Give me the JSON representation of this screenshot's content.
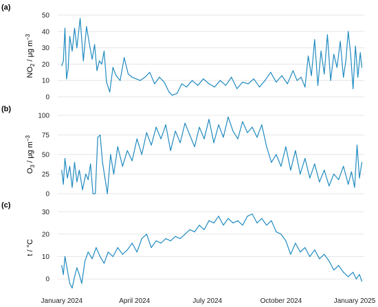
{
  "chart_data": [
    {
      "type": "line",
      "panel_label": "(a)",
      "ylabel_main": "NO",
      "ylabel_sub": "2",
      "ylabel_unit": " / μg m",
      "ylabel_sup": "−3",
      "ylim": [
        0,
        50
      ],
      "yticks": [
        0,
        10,
        20,
        30,
        40,
        50
      ],
      "grid": true,
      "color": "#1f8ac0",
      "series": [
        {
          "x": [
            "2024-01-01",
            "2024-01-03",
            "2024-01-05",
            "2024-01-07",
            "2024-01-09",
            "2024-01-11",
            "2024-01-14",
            "2024-01-17",
            "2024-01-20",
            "2024-01-24",
            "2024-01-28",
            "2024-02-01",
            "2024-02-05",
            "2024-02-08",
            "2024-02-11",
            "2024-02-14",
            "2024-02-17",
            "2024-02-20",
            "2024-02-23",
            "2024-02-26",
            "2024-03-01",
            "2024-03-05",
            "2024-03-09",
            "2024-03-14",
            "2024-03-19",
            "2024-03-24",
            "2024-03-29",
            "2024-04-03",
            "2024-04-08",
            "2024-04-14",
            "2024-04-20",
            "2024-04-26",
            "2024-05-02",
            "2024-05-08",
            "2024-05-14",
            "2024-05-18",
            "2024-05-24",
            "2024-05-30",
            "2024-06-05",
            "2024-06-12",
            "2024-06-19",
            "2024-06-26",
            "2024-07-03",
            "2024-07-10",
            "2024-07-17",
            "2024-07-24",
            "2024-07-31",
            "2024-08-07",
            "2024-08-14",
            "2024-08-21",
            "2024-08-28",
            "2024-09-04",
            "2024-09-11",
            "2024-09-18",
            "2024-09-25",
            "2024-10-02",
            "2024-10-09",
            "2024-10-16",
            "2024-10-21",
            "2024-10-26",
            "2024-10-31",
            "2024-11-04",
            "2024-11-08",
            "2024-11-12",
            "2024-11-16",
            "2024-11-20",
            "2024-11-24",
            "2024-11-28",
            "2024-12-02",
            "2024-12-06",
            "2024-12-10",
            "2024-12-14",
            "2024-12-18",
            "2024-12-21",
            "2024-12-24",
            "2024-12-27",
            "2024-12-30",
            "2025-01-02",
            "2025-01-05",
            "2025-01-08",
            "2025-01-10"
          ],
          "y": [
            19,
            22,
            42,
            11,
            17,
            37,
            28,
            42,
            30,
            48,
            22,
            43,
            31,
            23,
            32,
            16,
            22,
            20,
            28,
            9,
            3,
            18,
            13,
            10,
            24,
            14,
            12,
            11,
            10,
            12,
            15,
            8,
            12,
            9,
            3,
            1,
            2,
            8,
            6,
            10,
            7,
            11,
            8,
            6,
            10,
            7,
            12,
            5,
            9,
            8,
            11,
            6,
            10,
            15,
            9,
            13,
            8,
            16,
            10,
            12,
            6,
            25,
            13,
            35,
            7,
            28,
            14,
            38,
            10,
            26,
            18,
            34,
            12,
            22,
            40,
            26,
            5,
            31,
            12,
            27,
            18
          ]
        }
      ]
    },
    {
      "type": "line",
      "panel_label": "(b)",
      "ylabel_main": "O",
      "ylabel_sub": "3",
      "ylabel_unit": " / μg m",
      "ylabel_sup": "−3",
      "ylim": [
        0,
        100
      ],
      "yticks": [
        0,
        25,
        50,
        75,
        100
      ],
      "grid": true,
      "color": "#1f8ac0",
      "series": [
        {
          "x": [
            "2024-01-01",
            "2024-01-03",
            "2024-01-05",
            "2024-01-08",
            "2024-01-11",
            "2024-01-14",
            "2024-01-17",
            "2024-01-20",
            "2024-01-23",
            "2024-01-27",
            "2024-01-31",
            "2024-02-03",
            "2024-02-06",
            "2024-02-09",
            "2024-02-12",
            "2024-02-15",
            "2024-02-18",
            "2024-02-21",
            "2024-02-24",
            "2024-02-27",
            "2024-03-02",
            "2024-03-06",
            "2024-03-11",
            "2024-03-17",
            "2024-03-23",
            "2024-03-29",
            "2024-04-04",
            "2024-04-10",
            "2024-04-16",
            "2024-04-22",
            "2024-04-28",
            "2024-05-04",
            "2024-05-10",
            "2024-05-16",
            "2024-05-22",
            "2024-05-28",
            "2024-06-03",
            "2024-06-09",
            "2024-06-15",
            "2024-06-21",
            "2024-06-27",
            "2024-07-03",
            "2024-07-09",
            "2024-07-15",
            "2024-07-21",
            "2024-07-27",
            "2024-08-02",
            "2024-08-08",
            "2024-08-14",
            "2024-08-20",
            "2024-08-26",
            "2024-09-01",
            "2024-09-07",
            "2024-09-13",
            "2024-09-19",
            "2024-09-25",
            "2024-10-01",
            "2024-10-07",
            "2024-10-13",
            "2024-10-19",
            "2024-10-25",
            "2024-10-31",
            "2024-11-06",
            "2024-11-12",
            "2024-11-18",
            "2024-11-24",
            "2024-11-30",
            "2024-12-06",
            "2024-12-12",
            "2024-12-18",
            "2024-12-24",
            "2024-12-28",
            "2025-01-01",
            "2025-01-04",
            "2025-01-07",
            "2025-01-10"
          ],
          "y": [
            30,
            12,
            45,
            20,
            35,
            8,
            40,
            15,
            30,
            5,
            25,
            18,
            38,
            0,
            0,
            72,
            75,
            40,
            20,
            0,
            50,
            25,
            60,
            35,
            55,
            42,
            70,
            50,
            78,
            62,
            85,
            70,
            88,
            55,
            80,
            65,
            90,
            75,
            60,
            85,
            70,
            95,
            65,
            88,
            72,
            98,
            80,
            70,
            92,
            78,
            85,
            72,
            88,
            60,
            40,
            50,
            35,
            60,
            30,
            55,
            25,
            45,
            20,
            38,
            15,
            30,
            10,
            25,
            18,
            35,
            12,
            28,
            8,
            62,
            20,
            40
          ]
        }
      ]
    },
    {
      "type": "line",
      "panel_label": "(c)",
      "ylabel_main": "t / °C",
      "ylim": [
        -3,
        31
      ],
      "yticks": [
        0,
        10,
        20,
        30
      ],
      "grid": true,
      "color": "#1f8ac0",
      "xticks": [
        "January 2024",
        "April 2024",
        "July 2024",
        "October 2024",
        "January 2025"
      ],
      "xtick_dates": [
        "2024-01-01",
        "2024-04-01",
        "2024-07-01",
        "2024-10-01",
        "2025-01-01"
      ],
      "xlim": [
        "2023-12-27",
        "2025-01-13"
      ],
      "series": [
        {
          "x": [
            "2024-01-01",
            "2024-01-03",
            "2024-01-05",
            "2024-01-08",
            "2024-01-11",
            "2024-01-14",
            "2024-01-17",
            "2024-01-20",
            "2024-01-23",
            "2024-01-26",
            "2024-01-30",
            "2024-02-03",
            "2024-02-08",
            "2024-02-13",
            "2024-02-18",
            "2024-02-23",
            "2024-02-28",
            "2024-03-05",
            "2024-03-11",
            "2024-03-17",
            "2024-03-23",
            "2024-03-29",
            "2024-04-04",
            "2024-04-10",
            "2024-04-16",
            "2024-04-22",
            "2024-04-28",
            "2024-05-04",
            "2024-05-10",
            "2024-05-16",
            "2024-05-22",
            "2024-05-28",
            "2024-06-03",
            "2024-06-09",
            "2024-06-15",
            "2024-06-21",
            "2024-06-27",
            "2024-07-03",
            "2024-07-09",
            "2024-07-15",
            "2024-07-21",
            "2024-07-27",
            "2024-08-02",
            "2024-08-08",
            "2024-08-14",
            "2024-08-20",
            "2024-08-26",
            "2024-09-01",
            "2024-09-07",
            "2024-09-13",
            "2024-09-19",
            "2024-09-25",
            "2024-10-01",
            "2024-10-07",
            "2024-10-13",
            "2024-10-19",
            "2024-10-25",
            "2024-10-31",
            "2024-11-06",
            "2024-11-12",
            "2024-11-18",
            "2024-11-24",
            "2024-11-30",
            "2024-12-06",
            "2024-12-12",
            "2024-12-18",
            "2024-12-24",
            "2024-12-30",
            "2025-01-03",
            "2025-01-07",
            "2025-01-10"
          ],
          "y": [
            6,
            2,
            10,
            4,
            -2,
            -4,
            1,
            5,
            2,
            -2,
            8,
            12,
            9,
            14,
            10,
            7,
            12,
            10,
            14,
            11,
            13,
            16,
            12,
            18,
            20,
            14,
            17,
            16,
            18,
            17,
            19,
            18,
            20,
            22,
            21,
            24,
            22,
            26,
            25,
            28,
            24,
            27,
            25,
            26,
            24,
            28,
            29,
            25,
            27,
            24,
            26,
            21,
            20,
            17,
            11,
            16,
            12,
            14,
            10,
            13,
            9,
            11,
            8,
            4,
            6,
            3,
            1,
            3,
            0,
            2,
            -1
          ]
        }
      ]
    }
  ]
}
